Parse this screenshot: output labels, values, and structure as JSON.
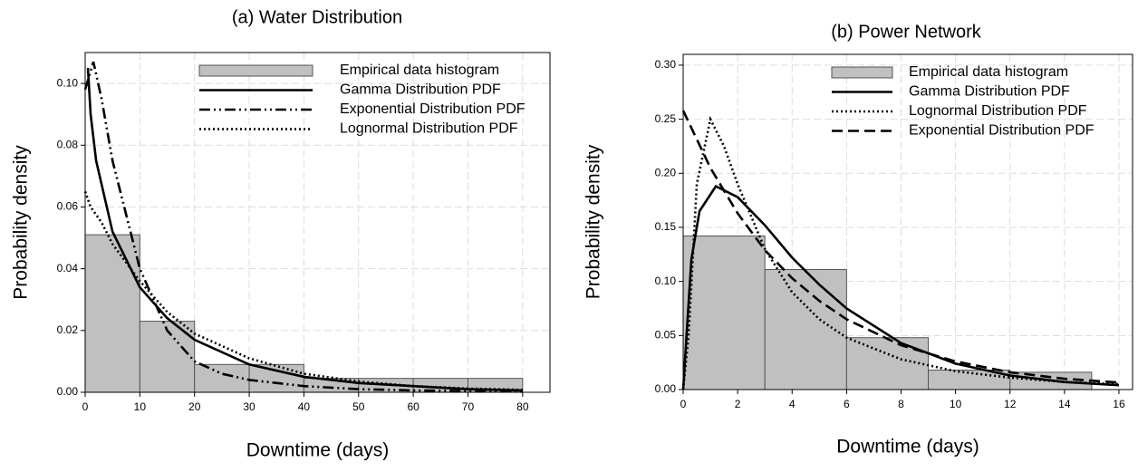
{
  "chart_data": [
    {
      "type": "histogram",
      "title": "(a) Water Distribution",
      "x_label": "Downtime (days)",
      "y_label": "Probability density",
      "bins": [
        0,
        10,
        20,
        30,
        40,
        50,
        60,
        70,
        80
      ],
      "values": [
        0.051,
        0.023,
        0.009,
        0.009,
        0.0045,
        0.0045,
        0.0045,
        0.0045
      ],
      "name": "Empirical data histogram",
      "color": "#c0c0c0",
      "series": [
        {
          "name": "Gamma Distribution PDF",
          "color": "#000000",
          "dash": "solid",
          "x": [
            0.5,
            1,
            2,
            5,
            10,
            15,
            20,
            30,
            40,
            50,
            60,
            70,
            80
          ],
          "values": [
            0.105,
            0.09,
            0.075,
            0.052,
            0.034,
            0.024,
            0.017,
            0.009,
            0.005,
            0.003,
            0.002,
            0.001,
            0.0006
          ]
        },
        {
          "name": "Exponential Distribution PDF",
          "color": "#000000",
          "dash": "dashdotdot",
          "x": [
            0,
            1.5,
            3,
            5,
            10,
            15,
            20,
            25,
            30,
            40,
            50,
            60,
            80
          ],
          "values": [
            0.098,
            0.107,
            0.095,
            0.075,
            0.04,
            0.02,
            0.01,
            0.006,
            0.004,
            0.002,
            0.001,
            0.0006,
            0.0002
          ]
        },
        {
          "name": "Lognormal Distribution PDF",
          "color": "#000000",
          "dash": "dotted",
          "x": [
            0,
            1,
            3,
            5,
            10,
            15,
            20,
            30,
            40,
            50,
            60,
            70,
            80
          ],
          "values": [
            0.065,
            0.06,
            0.055,
            0.048,
            0.036,
            0.026,
            0.019,
            0.011,
            0.006,
            0.0035,
            0.002,
            0.0012,
            0.0008
          ]
        }
      ],
      "xlim": [
        0,
        85
      ],
      "ylim": [
        0,
        0.11
      ],
      "xticks": [
        0,
        10,
        20,
        30,
        40,
        50,
        60,
        70,
        80
      ],
      "yticks": [
        {
          "value": 0,
          "label": "0.00"
        },
        {
          "value": 0.02,
          "label": "0.02"
        },
        {
          "value": 0.04,
          "label": "0.04"
        },
        {
          "value": 0.06,
          "label": "0.06"
        },
        {
          "value": 0.08,
          "label": "0.08"
        },
        {
          "value": 0.1,
          "label": "0.10"
        }
      ],
      "grid": true,
      "legend": "upper right"
    },
    {
      "type": "histogram",
      "title": "(b) Power Network",
      "x_label": "Downtime (days)",
      "y_label": "Probability density",
      "bins": [
        0,
        3,
        6,
        9,
        12,
        15
      ],
      "values": [
        0.142,
        0.111,
        0.048,
        0.018,
        0.016
      ],
      "name": "Empirical data histogram",
      "color": "#c0c0c0",
      "series": [
        {
          "name": "Gamma Distribution PDF",
          "color": "#000000",
          "dash": "solid",
          "x": [
            0,
            0.3,
            0.6,
            1.2,
            2,
            3,
            4,
            5,
            6,
            8,
            10,
            12,
            14,
            16
          ],
          "values": [
            0,
            0.12,
            0.165,
            0.188,
            0.178,
            0.152,
            0.122,
            0.097,
            0.075,
            0.043,
            0.024,
            0.013,
            0.007,
            0.004
          ]
        },
        {
          "name": "Lognormal Distribution PDF",
          "color": "#000000",
          "dash": "dotted",
          "x": [
            0,
            0.2,
            0.5,
            1,
            1.5,
            2,
            3,
            4,
            5,
            6,
            8,
            10,
            12,
            14,
            16
          ],
          "values": [
            0,
            0.05,
            0.19,
            0.25,
            0.225,
            0.19,
            0.13,
            0.09,
            0.065,
            0.048,
            0.028,
            0.017,
            0.011,
            0.007,
            0.005
          ]
        },
        {
          "name": "Exponential Distribution PDF",
          "color": "#000000",
          "dash": "dashed",
          "x": [
            0,
            1,
            2,
            3,
            4,
            5,
            6,
            8,
            10,
            12,
            14,
            16
          ],
          "values": [
            0.258,
            0.205,
            0.163,
            0.129,
            0.103,
            0.082,
            0.065,
            0.041,
            0.026,
            0.016,
            0.01,
            0.0065
          ]
        }
      ],
      "xlim": [
        0,
        16.5
      ],
      "ylim": [
        0,
        0.31
      ],
      "xticks": [
        0,
        2,
        4,
        6,
        8,
        10,
        12,
        14,
        16
      ],
      "yticks": [
        {
          "value": 0,
          "label": "0.00"
        },
        {
          "value": 0.05,
          "label": "0.05"
        },
        {
          "value": 0.1,
          "label": "0.10"
        },
        {
          "value": 0.15,
          "label": "0.15"
        },
        {
          "value": 0.2,
          "label": "0.20"
        },
        {
          "value": 0.25,
          "label": "0.25"
        },
        {
          "value": 0.3,
          "label": "0.30"
        }
      ],
      "grid": true,
      "legend": "upper right"
    }
  ]
}
